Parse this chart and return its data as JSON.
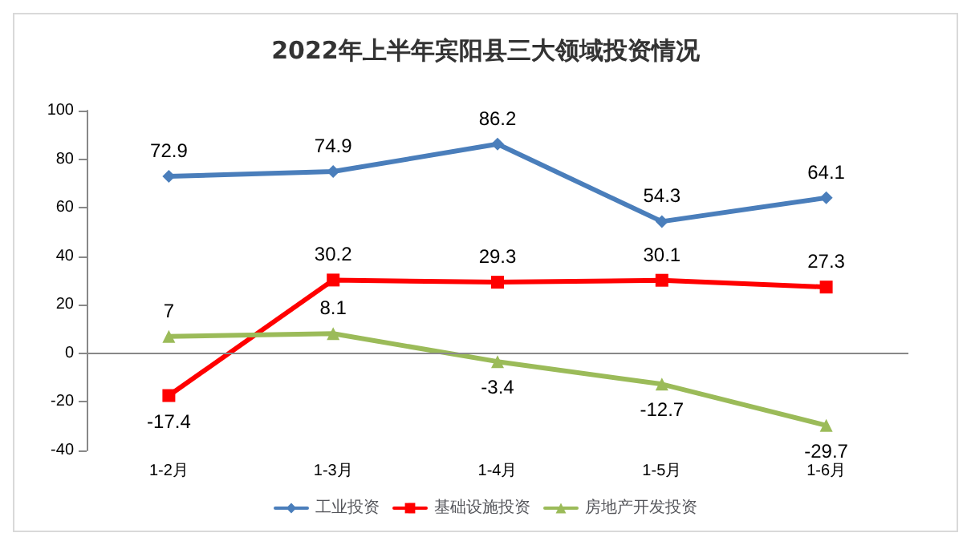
{
  "chart_data": {
    "type": "line",
    "title": "2022年上半年宾阳县三大领域投资情况",
    "categories": [
      "1-2月",
      "1-3月",
      "1-4月",
      "1-5月",
      "1-6月"
    ],
    "series": [
      {
        "name": "工业投资",
        "color": "#4a7ebb",
        "marker": "diamond",
        "values": [
          72.9,
          74.9,
          86.2,
          54.3,
          64.1
        ]
      },
      {
        "name": "基础设施投资",
        "color": "#ff0000",
        "marker": "square",
        "values": [
          -17.4,
          30.2,
          29.3,
          30.1,
          27.3
        ]
      },
      {
        "name": "房地产开发投资",
        "color": "#9bbb59",
        "marker": "triangle",
        "values": [
          7,
          8.1,
          -3.4,
          -12.7,
          -29.7
        ]
      }
    ],
    "ylim": [
      -40,
      100
    ],
    "yticks": [
      -40,
      -20,
      0,
      20,
      40,
      60,
      80,
      100
    ],
    "grid": false,
    "ref_lines": [
      {
        "axis": "y",
        "value": 0,
        "color": "#888888"
      }
    ],
    "legend": "bottom",
    "data_labels": true
  }
}
